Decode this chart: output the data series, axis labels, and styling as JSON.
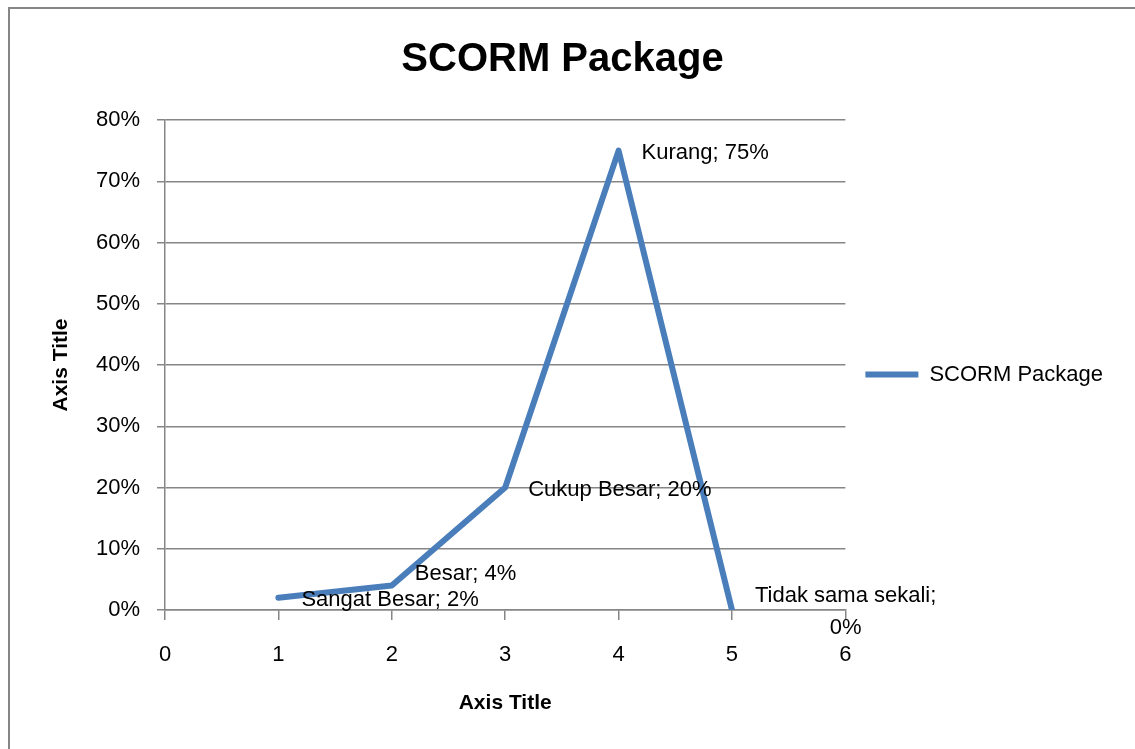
{
  "chart_data": {
    "type": "line",
    "title": "SCORM Package",
    "xlabel": "Axis Title",
    "ylabel": "Axis Title",
    "x": [
      1,
      2,
      3,
      4,
      5
    ],
    "series": [
      {
        "name": "SCORM Package",
        "color": "#4a7ebb",
        "values": [
          2,
          4,
          20,
          75,
          0
        ],
        "value_labels": [
          "Sangat Besar; 2%",
          "Besar; 4%",
          "Cukup Besar; 20%",
          "Kurang; 75%",
          "Tidak sama sekali; 0%"
        ]
      }
    ],
    "xlim": [
      0,
      6
    ],
    "xticks": [
      0,
      1,
      2,
      3,
      4,
      5,
      6
    ],
    "ylim": [
      0,
      80
    ],
    "yticks": [
      {
        "value": 0,
        "label": "0%"
      },
      {
        "value": 10,
        "label": "10%"
      },
      {
        "value": 20,
        "label": "20%"
      },
      {
        "value": 30,
        "label": "30%"
      },
      {
        "value": 40,
        "label": "40%"
      },
      {
        "value": 50,
        "label": "50%"
      },
      {
        "value": 60,
        "label": "60%"
      },
      {
        "value": 70,
        "label": "70%"
      },
      {
        "value": 80,
        "label": "80%"
      }
    ],
    "grid": "y",
    "legend": "right",
    "marker": "none",
    "line_style": "solid"
  }
}
